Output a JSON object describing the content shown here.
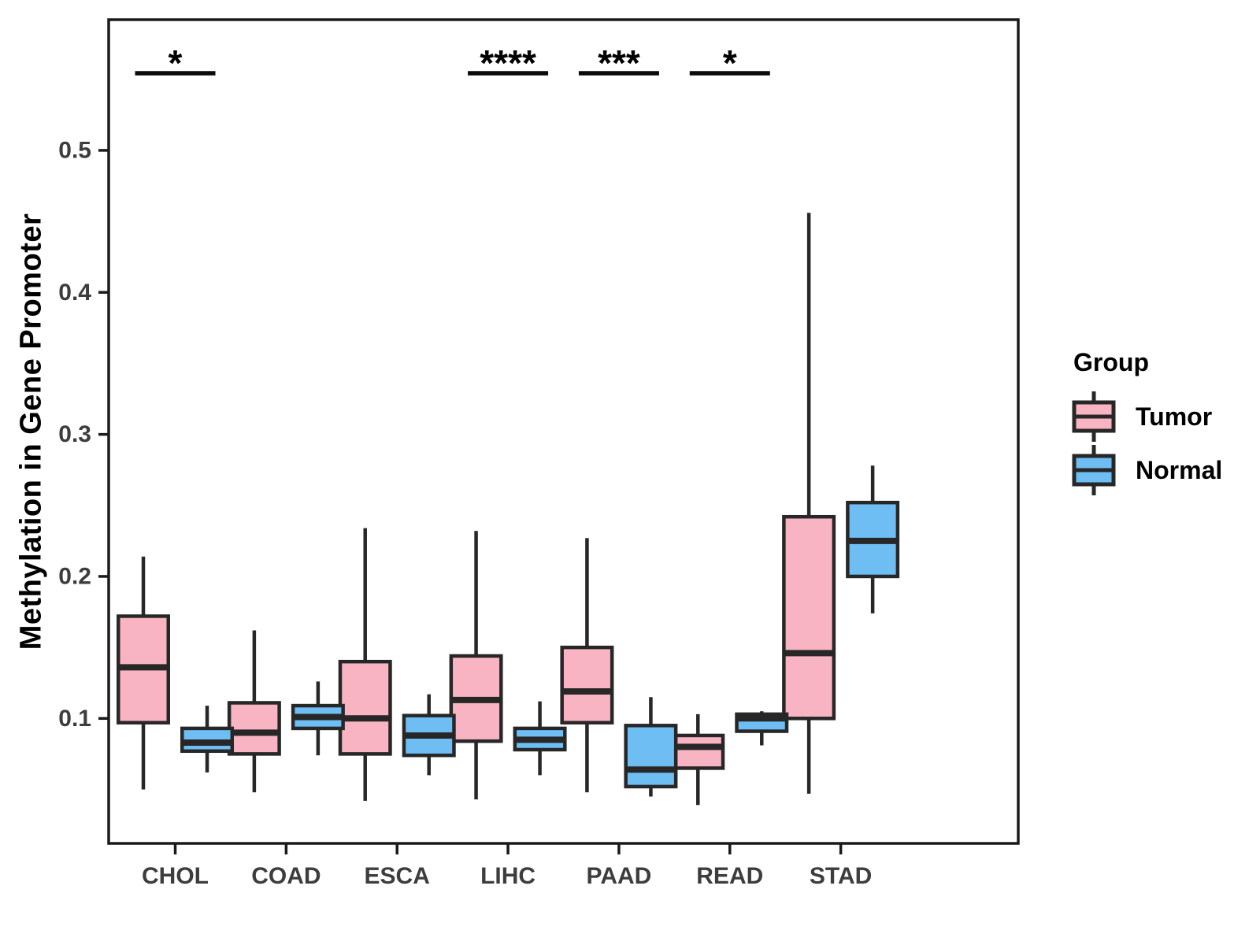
{
  "figure": {
    "y_axis_title": "Methylation in Gene Promoter",
    "legend": {
      "title": "Group",
      "items": [
        {
          "label": "Tumor",
          "color": "#F9B4C3"
        },
        {
          "label": "Normal",
          "color": "#6EBEF3"
        }
      ]
    }
  },
  "chart_data": {
    "type": "boxplot",
    "title": "",
    "xlabel": "",
    "ylabel": "Methylation in Gene Promoter",
    "categories": [
      "CHOL",
      "COAD",
      "ESCA",
      "LIHC",
      "PAAD",
      "READ",
      "STAD"
    ],
    "yticks": [
      0.1,
      0.2,
      0.3,
      0.4,
      0.5
    ],
    "ylim": [
      0.012,
      0.592
    ],
    "grid": false,
    "legend_position": "right",
    "stroke_color": "#272727",
    "series": [
      {
        "name": "Tumor",
        "fill": "#F9B4C3",
        "boxes": [
          {
            "category": "CHOL",
            "whisker_low": 0.05,
            "q1": 0.097,
            "median": 0.136,
            "q3": 0.172,
            "whisker_high": 0.214
          },
          {
            "category": "COAD",
            "whisker_low": 0.048,
            "q1": 0.075,
            "median": 0.09,
            "q3": 0.111,
            "whisker_high": 0.162
          },
          {
            "category": "ESCA",
            "whisker_low": 0.042,
            "q1": 0.075,
            "median": 0.1,
            "q3": 0.14,
            "whisker_high": 0.234
          },
          {
            "category": "LIHC",
            "whisker_low": 0.043,
            "q1": 0.084,
            "median": 0.113,
            "q3": 0.144,
            "whisker_high": 0.232
          },
          {
            "category": "PAAD",
            "whisker_low": 0.048,
            "q1": 0.097,
            "median": 0.119,
            "q3": 0.15,
            "whisker_high": 0.227
          },
          {
            "category": "READ",
            "whisker_low": 0.039,
            "q1": 0.065,
            "median": 0.08,
            "q3": 0.088,
            "whisker_high": 0.103
          },
          {
            "category": "STAD",
            "whisker_low": 0.047,
            "q1": 0.1,
            "median": 0.146,
            "q3": 0.242,
            "whisker_high": 0.456
          }
        ]
      },
      {
        "name": "Normal",
        "fill": "#6EBEF3",
        "boxes": [
          {
            "category": "CHOL",
            "whisker_low": 0.062,
            "q1": 0.077,
            "median": 0.083,
            "q3": 0.093,
            "whisker_high": 0.109
          },
          {
            "category": "COAD",
            "whisker_low": 0.074,
            "q1": 0.093,
            "median": 0.101,
            "q3": 0.109,
            "whisker_high": 0.126
          },
          {
            "category": "ESCA",
            "whisker_low": 0.06,
            "q1": 0.074,
            "median": 0.088,
            "q3": 0.102,
            "whisker_high": 0.117
          },
          {
            "category": "LIHC",
            "whisker_low": 0.06,
            "q1": 0.078,
            "median": 0.085,
            "q3": 0.093,
            "whisker_high": 0.112
          },
          {
            "category": "PAAD",
            "whisker_low": 0.045,
            "q1": 0.052,
            "median": 0.064,
            "q3": 0.095,
            "whisker_high": 0.115
          },
          {
            "category": "READ",
            "whisker_low": 0.081,
            "q1": 0.091,
            "median": 0.1,
            "q3": 0.103,
            "whisker_high": 0.105
          },
          {
            "category": "STAD",
            "whisker_low": 0.174,
            "q1": 0.2,
            "median": 0.225,
            "q3": 0.252,
            "whisker_high": 0.278
          }
        ]
      }
    ],
    "significance_annotations": [
      {
        "category": "CHOL",
        "label": "*"
      },
      {
        "category": "LIHC",
        "label": "****"
      },
      {
        "category": "PAAD",
        "label": "***"
      },
      {
        "category": "READ",
        "label": "*"
      }
    ]
  }
}
